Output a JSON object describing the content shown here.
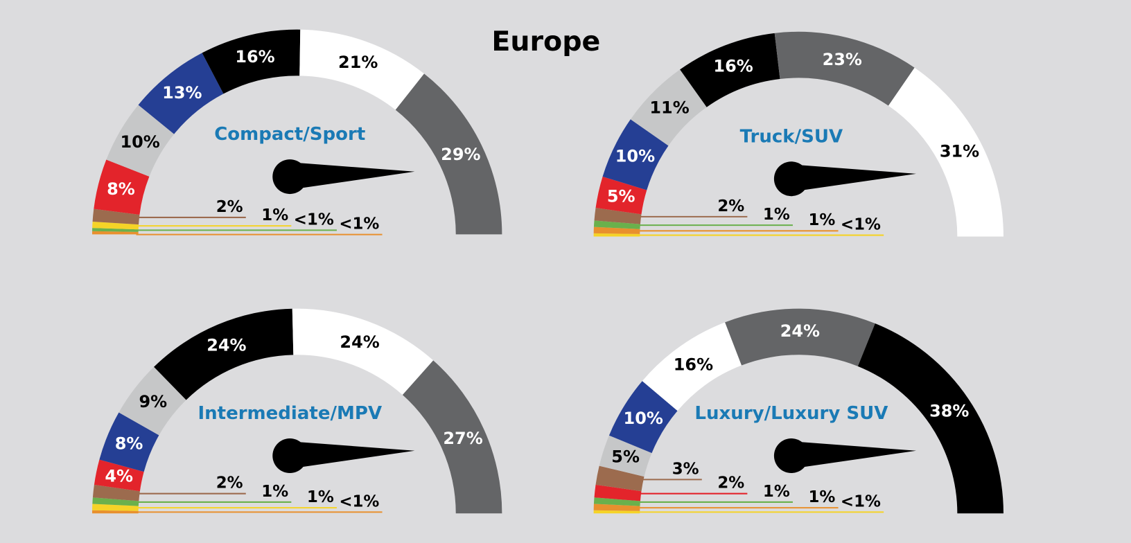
{
  "title": "Europe",
  "chart_data": [
    {
      "type": "gauge",
      "title": "Compact/Sport",
      "values": [
        0.5,
        0.5,
        1,
        2,
        8,
        10,
        13,
        16,
        21,
        29
      ],
      "value_labels": [
        "<1%",
        "<1%",
        "1%",
        "2%",
        "8%",
        "10%",
        "13%",
        "16%",
        "21%",
        "29%"
      ],
      "colors": [
        "#e8902e",
        "#6ab04c",
        "#f5d327",
        "#9c6b4e",
        "#e3242b",
        "#c6c7c8",
        "#253f94",
        "#000000",
        "#ffffff",
        "#646567"
      ]
    },
    {
      "type": "gauge",
      "title": "Truck/SUV",
      "values": [
        0.5,
        1,
        1,
        2,
        5,
        10,
        11,
        16,
        23,
        31
      ],
      "value_labels": [
        "<1%",
        "1%",
        "1%",
        "2%",
        "5%",
        "10%",
        "11%",
        "16%",
        "23%",
        "31%"
      ],
      "colors": [
        "#f5d327",
        "#e8902e",
        "#6ab04c",
        "#9c6b4e",
        "#e3242b",
        "#253f94",
        "#c6c7c8",
        "#000000",
        "#646567",
        "#ffffff"
      ]
    },
    {
      "type": "gauge",
      "title": "Intermediate/MPV",
      "values": [
        0.5,
        1,
        1,
        2,
        4,
        8,
        9,
        24,
        24,
        27
      ],
      "value_labels": [
        "<1%",
        "1%",
        "1%",
        "2%",
        "4%",
        "8%",
        "9%",
        "24%",
        "24%",
        "27%"
      ],
      "colors": [
        "#e8902e",
        "#f5d327",
        "#6ab04c",
        "#9c6b4e",
        "#e3242b",
        "#253f94",
        "#c6c7c8",
        "#000000",
        "#ffffff",
        "#646567"
      ]
    },
    {
      "type": "gauge",
      "title": "Luxury/Luxury SUV",
      "values": [
        0.5,
        1,
        1,
        2,
        3,
        5,
        10,
        16,
        24,
        38
      ],
      "value_labels": [
        "<1%",
        "1%",
        "1%",
        "2%",
        "3%",
        "5%",
        "10%",
        "16%",
        "24%",
        "38%"
      ],
      "colors": [
        "#f5d327",
        "#e8902e",
        "#6ab04c",
        "#e3242b",
        "#9c6b4e",
        "#c6c7c8",
        "#253f94",
        "#ffffff",
        "#646567",
        "#000000"
      ]
    }
  ]
}
